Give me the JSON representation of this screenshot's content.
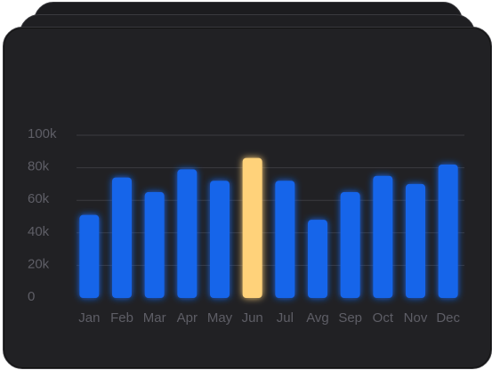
{
  "chart_data": {
    "type": "bar",
    "categories": [
      "Jan",
      "Feb",
      "Mar",
      "Apr",
      "May",
      "Jun",
      "Jul",
      "Avg",
      "Sep",
      "Oct",
      "Nov",
      "Dec"
    ],
    "values": [
      51,
      74,
      65,
      79,
      72,
      86,
      72,
      48,
      65,
      75,
      70,
      82
    ],
    "y_ticks": [
      "0",
      "20k",
      "40k",
      "60k",
      "80k",
      "100k"
    ],
    "ylim": [
      0,
      100
    ],
    "grid": "horizontal",
    "highlighted_category": "Jun",
    "colors": {
      "bar": "#1565ea",
      "highlight": "#ffd27a",
      "background": "#212124",
      "grid": "#3b3b40",
      "tick_label": "#5e5e66"
    }
  }
}
